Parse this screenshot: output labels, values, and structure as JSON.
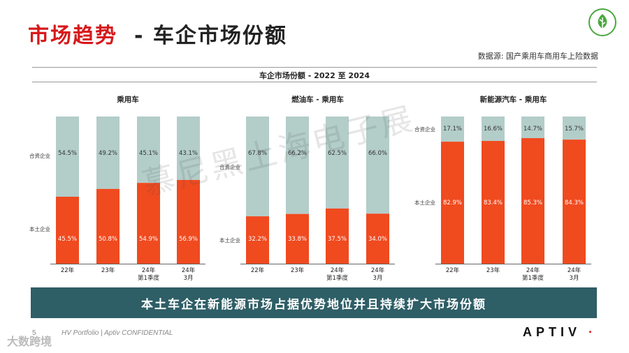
{
  "header": {
    "title_highlight": "市场趋势",
    "title_rest": "- 车企市场份额",
    "source": "数据源: 国产乘用车商用车上险数据",
    "logo_icon": "leaf-icon"
  },
  "main_title": "车企市场份额 - 2022 至 2024",
  "colors": {
    "local": "#f04a1f",
    "jv": "#b3cdc9",
    "banner": "#2e5e66",
    "brand_red": "#d7191c"
  },
  "chart_data": [
    {
      "type": "bar",
      "stacked": true,
      "percent": true,
      "title": "乘用车",
      "categories": [
        [
          "22年"
        ],
        [
          "23年"
        ],
        [
          "24年",
          "第1季度"
        ],
        [
          "24年",
          "3月"
        ]
      ],
      "series": [
        {
          "name": "本土企业",
          "values": [
            45.5,
            50.8,
            54.9,
            56.9
          ]
        },
        {
          "name": "合资企业",
          "values": [
            54.5,
            49.2,
            45.1,
            43.1
          ]
        }
      ]
    },
    {
      "type": "bar",
      "stacked": true,
      "percent": true,
      "title": "燃油车 - 乘用车",
      "categories": [
        [
          "22年"
        ],
        [
          "23年"
        ],
        [
          "24年",
          "第1季度"
        ],
        [
          "24年",
          "3月"
        ]
      ],
      "series": [
        {
          "name": "本土企业",
          "values": [
            32.2,
            33.8,
            37.5,
            34.0
          ]
        },
        {
          "name": "合资企业",
          "values": [
            67.8,
            66.2,
            62.5,
            66.0
          ]
        }
      ]
    },
    {
      "type": "bar",
      "stacked": true,
      "percent": true,
      "title": "新能源汽车 - 乘用车",
      "categories": [
        [
          "22年"
        ],
        [
          "23年"
        ],
        [
          "24年",
          "第1季度"
        ],
        [
          "24年",
          "3月"
        ]
      ],
      "series": [
        {
          "name": "本土企业",
          "values": [
            82.9,
            83.4,
            85.3,
            84.3
          ]
        },
        {
          "name": "合资企业",
          "values": [
            17.1,
            16.6,
            14.7,
            15.7
          ]
        }
      ]
    }
  ],
  "banner": "本土车企在新能源市场占据优势地位并且持续扩大市场份额",
  "footer": {
    "page": "5",
    "text": "HV Portfolio | Aptiv CONFIDENTIAL",
    "brand": "APTIV",
    "brand_dot": "·"
  },
  "watermark": "慕尼黑上海电子展",
  "watermark2": "大数跨境"
}
